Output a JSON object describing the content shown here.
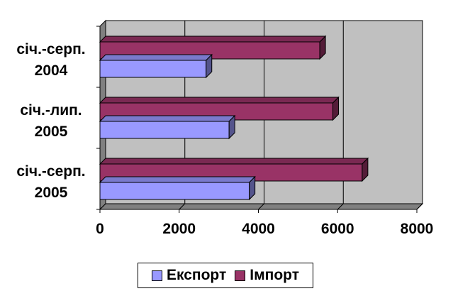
{
  "chart_data": {
    "type": "bar",
    "orientation": "horizontal",
    "style": "3d",
    "categories": [
      [
        "січ.-серп.",
        "2004"
      ],
      [
        "січ.-лип.",
        "2005"
      ],
      [
        "січ.-серп.",
        "2005"
      ]
    ],
    "series": [
      {
        "name": "Імпорт",
        "color": "#993366",
        "values": [
          5550,
          5880,
          6620
        ]
      },
      {
        "name": "Експорт",
        "color": "#9999ff",
        "values": [
          2680,
          3260,
          3770
        ]
      }
    ],
    "xlim": [
      0,
      8000
    ],
    "xticks": [
      "0",
      "2000",
      "4000",
      "6000",
      "8000"
    ],
    "legend_order": [
      "Експорт",
      "Імпорт"
    ],
    "legend_position": "bottom",
    "grid": true,
    "plot_background": "#c0c0c0",
    "title": "",
    "xlabel": "",
    "ylabel": ""
  }
}
